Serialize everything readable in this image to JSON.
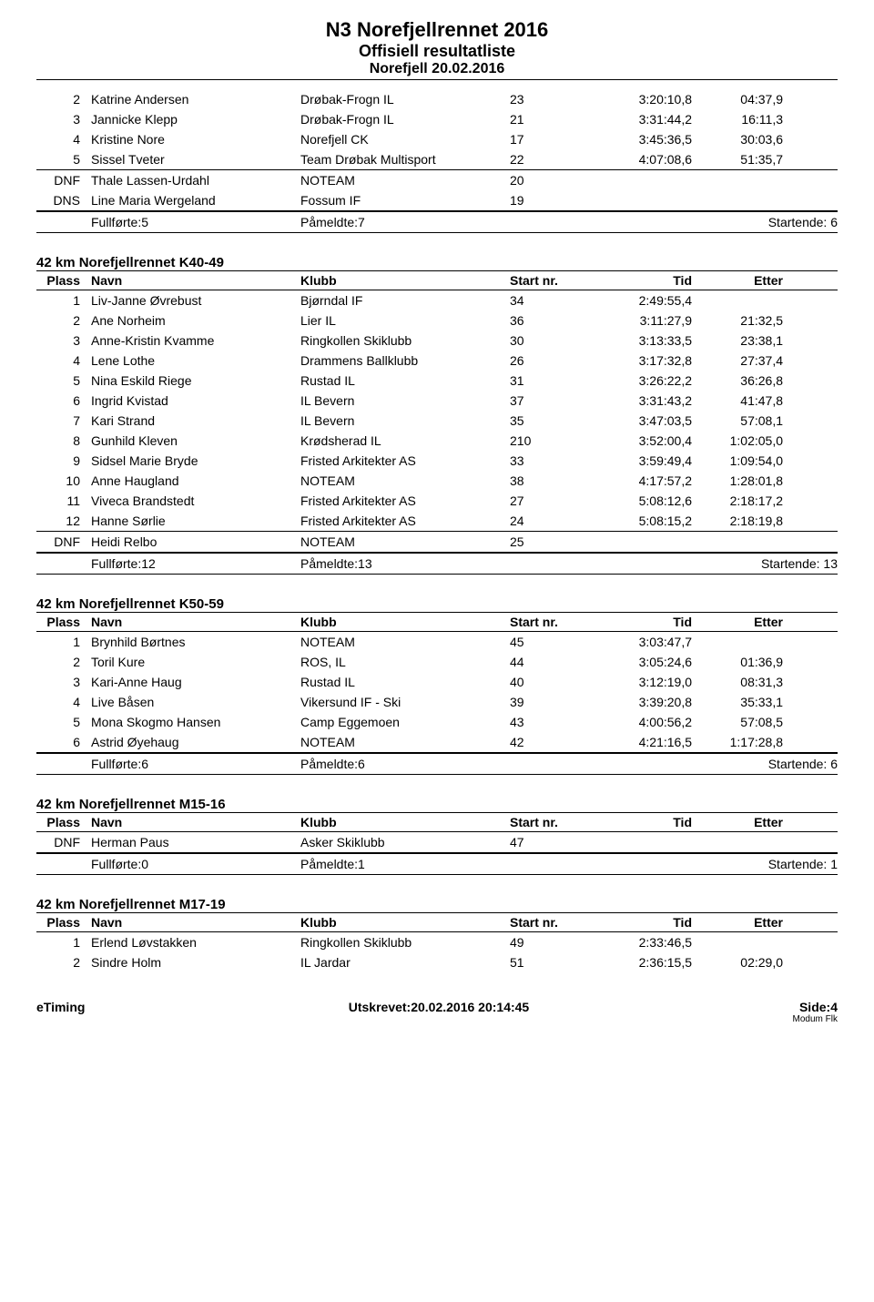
{
  "header": {
    "title": "N3 Norefjellrennet 2016",
    "subtitle": "Offisiell resultatliste",
    "dateline": "Norefjell 20.02.2016"
  },
  "columns": {
    "plass": "Plass",
    "navn": "Navn",
    "klubb": "Klubb",
    "start": "Start nr.",
    "tid": "Tid",
    "etter": "Etter"
  },
  "top_section": {
    "rows": [
      {
        "plass": "2",
        "navn": "Katrine Andersen",
        "klubb": "Drøbak-Frogn IL",
        "start": "23",
        "tid": "3:20:10,8",
        "etter": "04:37,9"
      },
      {
        "plass": "3",
        "navn": "Jannicke Klepp",
        "klubb": "Drøbak-Frogn IL",
        "start": "21",
        "tid": "3:31:44,2",
        "etter": "16:11,3"
      },
      {
        "plass": "4",
        "navn": "Kristine Nore",
        "klubb": "Norefjell CK",
        "start": "17",
        "tid": "3:45:36,5",
        "etter": "30:03,6"
      },
      {
        "plass": "5",
        "navn": "Sissel Tveter",
        "klubb": "Team Drøbak Multisport",
        "start": "22",
        "tid": "4:07:08,6",
        "etter": "51:35,7"
      },
      {
        "plass": "DNF",
        "navn": "Thale Lassen-Urdahl",
        "klubb": "NOTEAM",
        "start": "20",
        "tid": "",
        "etter": ""
      },
      {
        "plass": "DNS",
        "navn": "Line Maria Wergeland",
        "klubb": "Fossum IF",
        "start": "19",
        "tid": "",
        "etter": ""
      }
    ],
    "summary": {
      "full": "Fullførte:5",
      "pam": "Påmeldte:7",
      "start": "Startende: 6"
    }
  },
  "k40": {
    "title": "42 km Norefjellrennet K40-49",
    "rows": [
      {
        "plass": "1",
        "navn": "Liv-Janne Øvrebust",
        "klubb": "Bjørndal IF",
        "start": "34",
        "tid": "2:49:55,4",
        "etter": ""
      },
      {
        "plass": "2",
        "navn": "Ane Norheim",
        "klubb": "Lier IL",
        "start": "36",
        "tid": "3:11:27,9",
        "etter": "21:32,5"
      },
      {
        "plass": "3",
        "navn": "Anne-Kristin Kvamme",
        "klubb": "Ringkollen Skiklubb",
        "start": "30",
        "tid": "3:13:33,5",
        "etter": "23:38,1"
      },
      {
        "plass": "4",
        "navn": "Lene Lothe",
        "klubb": "Drammens Ballklubb",
        "start": "26",
        "tid": "3:17:32,8",
        "etter": "27:37,4"
      },
      {
        "plass": "5",
        "navn": "Nina Eskild Riege",
        "klubb": "Rustad IL",
        "start": "31",
        "tid": "3:26:22,2",
        "etter": "36:26,8"
      },
      {
        "plass": "6",
        "navn": "Ingrid Kvistad",
        "klubb": "IL Bevern",
        "start": "37",
        "tid": "3:31:43,2",
        "etter": "41:47,8"
      },
      {
        "plass": "7",
        "navn": "Kari Strand",
        "klubb": "IL Bevern",
        "start": "35",
        "tid": "3:47:03,5",
        "etter": "57:08,1"
      },
      {
        "plass": "8",
        "navn": "Gunhild Kleven",
        "klubb": "Krødsherad IL",
        "start": "210",
        "tid": "3:52:00,4",
        "etter": "1:02:05,0"
      },
      {
        "plass": "9",
        "navn": "Sidsel Marie Bryde",
        "klubb": "Fristed Arkitekter AS",
        "start": "33",
        "tid": "3:59:49,4",
        "etter": "1:09:54,0"
      },
      {
        "plass": "10",
        "navn": "Anne Haugland",
        "klubb": "NOTEAM",
        "start": "38",
        "tid": "4:17:57,2",
        "etter": "1:28:01,8"
      },
      {
        "plass": "11",
        "navn": "Viveca Brandstedt",
        "klubb": "Fristed Arkitekter AS",
        "start": "27",
        "tid": "5:08:12,6",
        "etter": "2:18:17,2"
      },
      {
        "plass": "12",
        "navn": "Hanne Sørlie",
        "klubb": "Fristed Arkitekter AS",
        "start": "24",
        "tid": "5:08:15,2",
        "etter": "2:18:19,8"
      },
      {
        "plass": "DNF",
        "navn": "Heidi Relbo",
        "klubb": "NOTEAM",
        "start": "25",
        "tid": "",
        "etter": ""
      }
    ],
    "summary": {
      "full": "Fullførte:12",
      "pam": "Påmeldte:13",
      "start": "Startende: 13"
    }
  },
  "k50": {
    "title": "42 km Norefjellrennet K50-59",
    "rows": [
      {
        "plass": "1",
        "navn": "Brynhild Børtnes",
        "klubb": "NOTEAM",
        "start": "45",
        "tid": "3:03:47,7",
        "etter": ""
      },
      {
        "plass": "2",
        "navn": "Toril Kure",
        "klubb": "ROS, IL",
        "start": "44",
        "tid": "3:05:24,6",
        "etter": "01:36,9"
      },
      {
        "plass": "3",
        "navn": "Kari-Anne Haug",
        "klubb": "Rustad IL",
        "start": "40",
        "tid": "3:12:19,0",
        "etter": "08:31,3"
      },
      {
        "plass": "4",
        "navn": "Live Båsen",
        "klubb": "Vikersund IF - Ski",
        "start": "39",
        "tid": "3:39:20,8",
        "etter": "35:33,1"
      },
      {
        "plass": "5",
        "navn": "Mona Skogmo Hansen",
        "klubb": "Camp Eggemoen",
        "start": "43",
        "tid": "4:00:56,2",
        "etter": "57:08,5"
      },
      {
        "plass": "6",
        "navn": "Astrid Øyehaug",
        "klubb": "NOTEAM",
        "start": "42",
        "tid": "4:21:16,5",
        "etter": "1:17:28,8"
      }
    ],
    "summary": {
      "full": "Fullførte:6",
      "pam": "Påmeldte:6",
      "start": "Startende: 6"
    }
  },
  "m15": {
    "title": "42 km Norefjellrennet M15-16",
    "rows": [
      {
        "plass": "DNF",
        "navn": "Herman Paus",
        "klubb": "Asker Skiklubb",
        "start": "47",
        "tid": "",
        "etter": ""
      }
    ],
    "summary": {
      "full": "Fullførte:0",
      "pam": "Påmeldte:1",
      "start": "Startende: 1"
    }
  },
  "m17": {
    "title": "42 km Norefjellrennet M17-19",
    "rows": [
      {
        "plass": "1",
        "navn": "Erlend Løvstakken",
        "klubb": "Ringkollen Skiklubb",
        "start": "49",
        "tid": "2:33:46,5",
        "etter": ""
      },
      {
        "plass": "2",
        "navn": "Sindre Holm",
        "klubb": "IL Jardar",
        "start": "51",
        "tid": "2:36:15,5",
        "etter": "02:29,0"
      }
    ]
  },
  "footer": {
    "left": "eTiming",
    "center": "Utskrevet:20.02.2016 20:14:45",
    "right": "Side:4",
    "sub": "Modum Flk"
  }
}
